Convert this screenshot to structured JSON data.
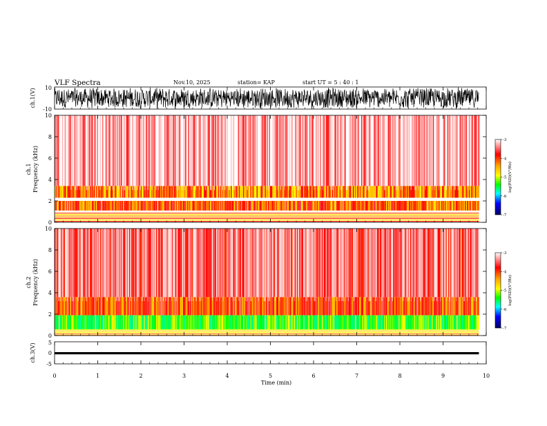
{
  "header": {
    "title": "VLF Spectra",
    "date": "Nov.10, 2025",
    "station": "station= KAP",
    "start": "start  UT  =   5  : 40 : 1"
  },
  "chart_data": [
    {
      "type": "line",
      "name": "ch1-waveform",
      "ylabel": "ch.1(V)",
      "ylim": [
        -10,
        10
      ],
      "yticks": [
        "10",
        "-10"
      ],
      "x_range_min": [
        0,
        10
      ],
      "data_end_min": 9.83,
      "description_of_signal": "noise-like waveform spanning most of the range"
    },
    {
      "type": "heatmap",
      "name": "ch1-spectrogram",
      "ylabel_line1": "ch.1",
      "ylabel_line2": "Frequency (kHz)",
      "ylim": [
        0,
        10
      ],
      "yticks": [
        "0",
        "2",
        "4",
        "6",
        "8",
        "10"
      ],
      "colorbar": {
        "label": "log(PSD)(V²/Hz)",
        "range": [
          -7,
          -3
        ],
        "ticks": [
          "-3",
          "-4",
          "-5",
          "-6",
          "-7"
        ]
      },
      "bands_khz": [
        {
          "from": 0.0,
          "to": 0.9,
          "level": -4.3,
          "note": "striped low band"
        },
        {
          "from": 1.1,
          "to": 2.0,
          "level": -4.0
        },
        {
          "from": 2.3,
          "to": 3.4,
          "level": -4.1
        },
        {
          "from": 3.4,
          "to": 10.0,
          "level": -3.3
        }
      ]
    },
    {
      "type": "heatmap",
      "name": "ch2-spectrogram",
      "ylabel_line1": "ch.2",
      "ylabel_line2": "Frequency (kHz)",
      "ylim": [
        0,
        10
      ],
      "yticks": [
        "0",
        "2",
        "4",
        "6",
        "8",
        "10"
      ],
      "colorbar": {
        "label": "log(PSD)(V²/Hz)",
        "range": [
          -7,
          -3
        ],
        "ticks": [
          "-3",
          "-4",
          "-5",
          "-6",
          "-7"
        ]
      },
      "bands_khz": [
        {
          "from": 0.0,
          "to": 0.6,
          "level": -4.2,
          "note": "striped low band"
        },
        {
          "from": 0.6,
          "to": 1.9,
          "level": -4.9
        },
        {
          "from": 1.9,
          "to": 3.6,
          "level": -3.9
        },
        {
          "from": 3.6,
          "to": 10.0,
          "level": -3.5
        }
      ]
    },
    {
      "type": "line",
      "name": "ch3-waveform",
      "ylabel": "ch.3(V)",
      "ylim": [
        -5,
        5
      ],
      "yticks": [
        "5",
        "0",
        "-5"
      ],
      "baseline_v": -0.2,
      "band_half_width_v": 0.5
    }
  ],
  "xaxis": {
    "label": "Time (min)",
    "range": [
      0,
      10
    ],
    "ticks": [
      "0",
      "1",
      "2",
      "3",
      "4",
      "5",
      "6",
      "7",
      "8",
      "9",
      "10"
    ]
  }
}
